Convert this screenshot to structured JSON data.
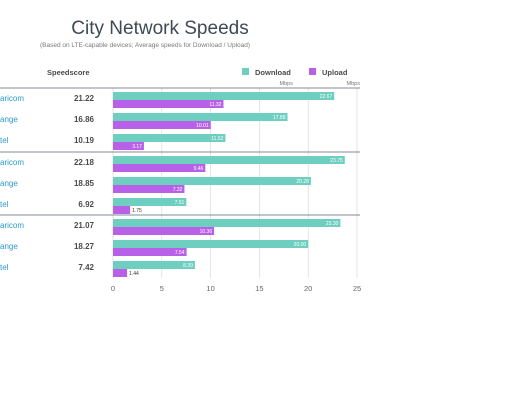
{
  "chart_data": {
    "type": "bar",
    "title": "City Network Speeds",
    "subtitle": "(Based on LTE-capable devices; Average speeds for Download / Upload)",
    "score_header": "Speedscore",
    "legend": [
      {
        "name": "Download",
        "unit": "Mbps",
        "color": "#6ecfc0"
      },
      {
        "name": "Upload",
        "unit": "Mbps",
        "color": "#b861e8"
      }
    ],
    "x_ticks": [
      "0",
      "5",
      "10",
      "15",
      "20",
      "25"
    ],
    "xlim": [
      0,
      25
    ],
    "groups": [
      {
        "rows": [
          {
            "label": "aricom",
            "score": "21.22",
            "download": 22.67,
            "upload": 11.32,
            "download_label": "22.67",
            "upload_label": "11.32"
          },
          {
            "label": "ange",
            "score": "16.86",
            "download": 17.88,
            "upload": 10.01,
            "download_label": "17.88",
            "upload_label": "10.01"
          },
          {
            "label": "tel",
            "score": "10.19",
            "download": 11.52,
            "upload": 3.17,
            "download_label": "11.52",
            "upload_label": "3.17"
          }
        ]
      },
      {
        "rows": [
          {
            "label": "aricom",
            "score": "22.18",
            "download": 23.75,
            "upload": 9.46,
            "download_label": "23.75",
            "upload_label": "9.46"
          },
          {
            "label": "ange",
            "score": "18.85",
            "download": 20.28,
            "upload": 7.32,
            "download_label": "20.28",
            "upload_label": "7.32"
          },
          {
            "label": "tel",
            "score": "6.92",
            "download": 7.51,
            "upload": 1.75,
            "download_label": "7.51",
            "upload_label": "1.75"
          }
        ]
      },
      {
        "rows": [
          {
            "label": "aricom",
            "score": "21.07",
            "download": 23.3,
            "upload": 10.36,
            "download_label": "23.30",
            "upload_label": "10.36"
          },
          {
            "label": "ange",
            "score": "18.27",
            "download": 20.0,
            "upload": 7.54,
            "download_label": "20.00",
            "upload_label": "7.54"
          },
          {
            "label": "tel",
            "score": "7.42",
            "download": 8.39,
            "upload": 1.44,
            "download_label": "8.39",
            "upload_label": "1.44"
          }
        ]
      }
    ]
  }
}
